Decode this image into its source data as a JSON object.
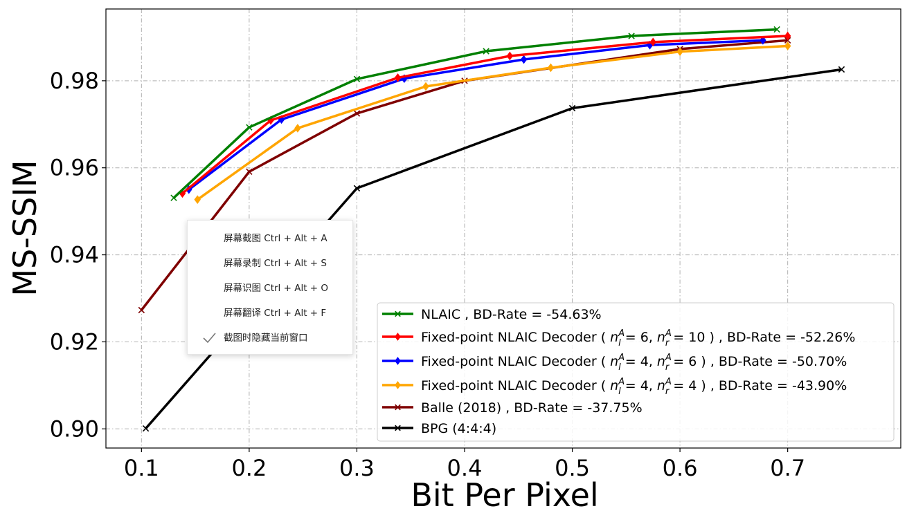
{
  "chart_data": {
    "type": "line",
    "xlabel": "Bit Per Pixel",
    "ylabel": "MS-SSIM",
    "xlim": [
      0.067,
      0.805
    ],
    "ylim": [
      0.8956,
      0.9965
    ],
    "xticks": [
      "0.1",
      "0.2",
      "0.3",
      "0.4",
      "0.5",
      "0.6",
      "0.7"
    ],
    "yticks": [
      "0.90",
      "0.92",
      "0.94",
      "0.96",
      "0.98"
    ],
    "grid": true,
    "legend_position": "lower-right",
    "series": [
      {
        "name": "NLAIC , BD-Rate = -54.63%",
        "color": "#008000",
        "marker": "x",
        "x": [
          0.13,
          0.2,
          0.3,
          0.42,
          0.555,
          0.69
        ],
        "y": [
          0.9531,
          0.9693,
          0.9804,
          0.9868,
          0.9903,
          0.9918
        ]
      },
      {
        "name_parts": [
          "Fixed-point NLAIC Decoder ( ",
          "6",
          "10",
          " ) , BD-Rate = -52.26%"
        ],
        "color": "#ff0000",
        "marker": "diamond",
        "x": [
          0.138,
          0.22,
          0.338,
          0.442,
          0.575,
          0.7
        ],
        "y": [
          0.9541,
          0.9709,
          0.9807,
          0.9857,
          0.9889,
          0.9903
        ]
      },
      {
        "name_parts": [
          "Fixed-point NLAIC Decoder ( ",
          "4",
          "6",
          " ) , BD-Rate = -50.70%"
        ],
        "color": "#0000ff",
        "marker": "diamond",
        "x": [
          0.144,
          0.23,
          0.344,
          0.455,
          0.572,
          0.677
        ],
        "y": [
          0.955,
          0.9711,
          0.9805,
          0.9849,
          0.9882,
          0.9893
        ]
      },
      {
        "name_parts": [
          "Fixed-point NLAIC Decoder ( ",
          "4",
          "4",
          " ) , BD-Rate = -43.90%"
        ],
        "color": "#ffa500",
        "marker": "diamond",
        "x": [
          0.152,
          0.245,
          0.364,
          0.48,
          0.6,
          0.7
        ],
        "y": [
          0.9527,
          0.9691,
          0.9787,
          0.983,
          0.9867,
          0.988
        ]
      },
      {
        "name": "Balle (2018) , BD-Rate = -37.75%",
        "color": "#7f0000",
        "marker": "x",
        "x": [
          0.1,
          0.2,
          0.3,
          0.4,
          0.6,
          0.7
        ],
        "y": [
          0.9273,
          0.9591,
          0.9725,
          0.98,
          0.9873,
          0.9893
        ]
      },
      {
        "name": "BPG (4:4:4)",
        "color": "#000000",
        "marker": "x",
        "x": [
          0.104,
          0.3,
          0.5,
          0.75
        ],
        "y": [
          0.9001,
          0.9553,
          0.9737,
          0.9826
        ]
      }
    ]
  },
  "context_menu": {
    "items": [
      {
        "label": "屏幕截图 Ctrl + Alt + A",
        "checked": false
      },
      {
        "label": "屏幕录制 Ctrl + Alt + S",
        "checked": false
      },
      {
        "label": "屏幕识图 Ctrl + Alt + O",
        "checked": false
      },
      {
        "label": "屏幕翻译 Ctrl + Alt + F",
        "checked": false
      },
      {
        "label": "截图时隐藏当前窗口",
        "checked": true
      }
    ]
  }
}
